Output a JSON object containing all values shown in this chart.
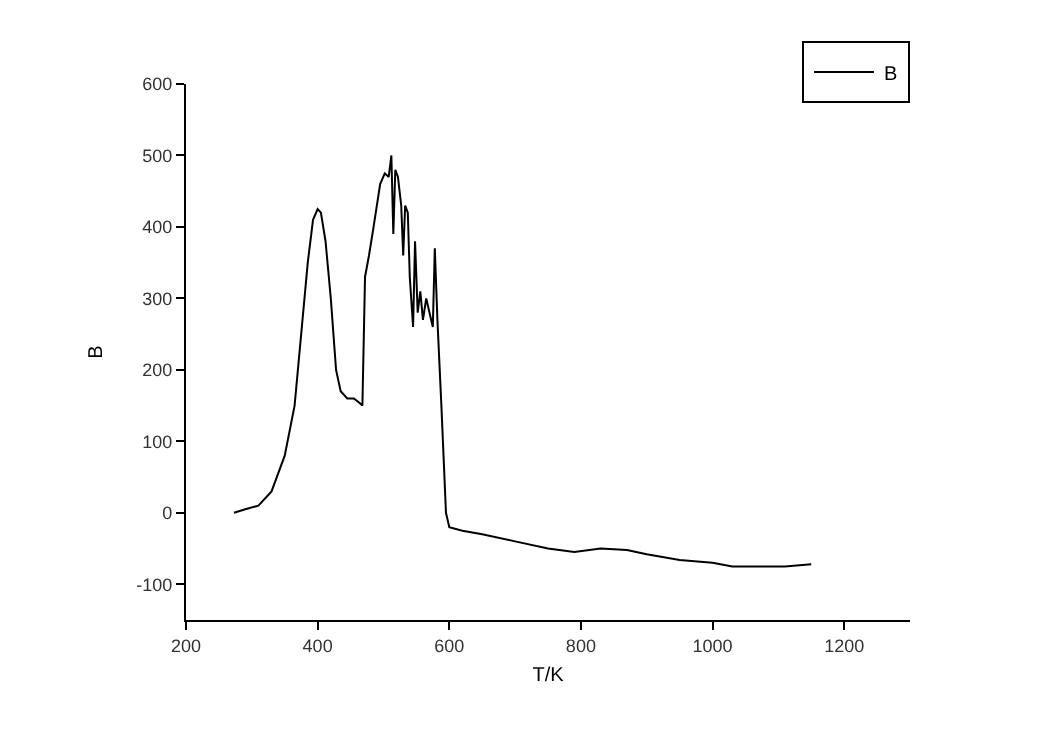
{
  "chart_data": {
    "type": "line",
    "xlabel": "T/K",
    "ylabel": "B",
    "xlim": [
      200,
      1300
    ],
    "ylim": [
      -150,
      600
    ],
    "xticks": [
      200,
      400,
      600,
      800,
      1000,
      1200
    ],
    "yticks": [
      -100,
      0,
      100,
      200,
      300,
      400,
      500,
      600
    ],
    "legend": "top right",
    "marker": "none",
    "line_style": "solid",
    "series": [
      {
        "name": "B",
        "color": "#000000",
        "x": [
          273,
          290,
          310,
          330,
          350,
          365,
          375,
          385,
          393,
          400,
          405,
          412,
          420,
          428,
          435,
          445,
          455,
          462,
          468,
          472,
          478,
          485,
          495,
          502,
          508,
          512,
          515,
          518,
          522,
          527,
          530,
          533,
          537,
          540,
          545,
          548,
          552,
          556,
          560,
          565,
          570,
          575,
          578,
          582,
          588,
          595,
          600,
          620,
          650,
          700,
          750,
          790,
          830,
          870,
          900,
          950,
          1000,
          1030,
          1110,
          1150
        ],
        "values": [
          0,
          5,
          10,
          30,
          80,
          150,
          250,
          350,
          410,
          425,
          420,
          380,
          300,
          200,
          170,
          160,
          160,
          155,
          150,
          330,
          360,
          400,
          460,
          475,
          470,
          500,
          390,
          480,
          470,
          430,
          360,
          430,
          420,
          330,
          260,
          380,
          280,
          310,
          270,
          300,
          280,
          260,
          370,
          270,
          150,
          0,
          -20,
          -25,
          -30,
          -40,
          -50,
          -55,
          -50,
          -52,
          -58,
          -66,
          -70,
          -75,
          -75,
          -72
        ]
      }
    ]
  }
}
